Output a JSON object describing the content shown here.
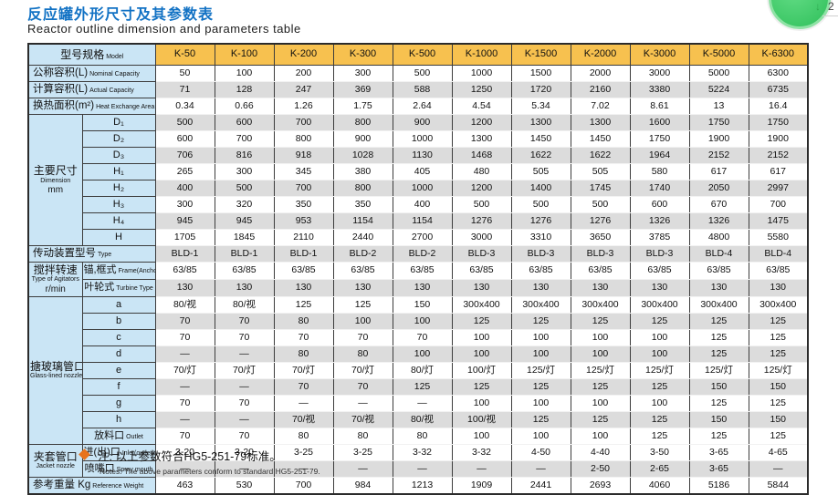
{
  "page": {
    "title_cn": "反应罐外形尺寸及其参数表",
    "title_en": "Reactor outline dimension and parameters table",
    "note_cn": "注: 以上参数符合HG5-251-79标准。",
    "note_en": "Notes: The above parameters conform to standard HG5-251-79."
  },
  "overlay": {
    "arrow": "↓",
    "badge_count": "2"
  },
  "colors": {
    "title_blue": "#1272C4",
    "header_orange": "#F7C14F",
    "label_blue": "#CAE5F5",
    "stripe_gray": "#DCDCDC",
    "note_diamond_orange": "#E8731C",
    "badge_green": "#2fbf5a"
  },
  "table": {
    "header": {
      "label_cn": "型号规格",
      "label_en": "Model",
      "models": [
        "K-50",
        "K-100",
        "K-200",
        "K-300",
        "K-500",
        "K-1000",
        "K-1500",
        "K-2000",
        "K-3000",
        "K-5000",
        "K-6300"
      ]
    },
    "rows": [
      {
        "label_cn": "公称容积(L)",
        "label_en": "Nominal Capacity",
        "shade": false,
        "values": [
          "50",
          "100",
          "200",
          "300",
          "500",
          "1000",
          "1500",
          "2000",
          "3000",
          "5000",
          "6300"
        ]
      },
      {
        "label_cn": "计算容积(L)",
        "label_en": "Actual Capacity",
        "shade": true,
        "values": [
          "71",
          "128",
          "247",
          "369",
          "588",
          "1250",
          "1720",
          "2160",
          "3380",
          "5224",
          "6735"
        ]
      },
      {
        "label_cn": "换热面积(m²)",
        "label_en": "Heat Exchange Area",
        "shade": false,
        "values": [
          "0.34",
          "0.66",
          "1.26",
          "1.75",
          "2.64",
          "4.54",
          "5.34",
          "7.02",
          "8.61",
          "13",
          "16.4"
        ]
      },
      {
        "group": {
          "cn": "主要尺寸",
          "en": "Dimension",
          "unit": "mm",
          "span": 8
        },
        "sub_cn": "D₁",
        "shade": true,
        "values": [
          "500",
          "600",
          "700",
          "800",
          "900",
          "1200",
          "1300",
          "1300",
          "1600",
          "1750",
          "1750"
        ]
      },
      {
        "sub_cn": "D₂",
        "shade": false,
        "values": [
          "600",
          "700",
          "800",
          "900",
          "1000",
          "1300",
          "1450",
          "1450",
          "1750",
          "1900",
          "1900"
        ]
      },
      {
        "sub_cn": "D₃",
        "shade": true,
        "values": [
          "706",
          "816",
          "918",
          "1028",
          "1130",
          "1468",
          "1622",
          "1622",
          "1964",
          "2152",
          "2152"
        ]
      },
      {
        "sub_cn": "H₁",
        "shade": false,
        "values": [
          "265",
          "300",
          "345",
          "380",
          "405",
          "480",
          "505",
          "505",
          "580",
          "617",
          "617"
        ]
      },
      {
        "sub_cn": "H₂",
        "shade": true,
        "values": [
          "400",
          "500",
          "700",
          "800",
          "1000",
          "1200",
          "1400",
          "1745",
          "1740",
          "2050",
          "2997"
        ]
      },
      {
        "sub_cn": "H₃",
        "shade": false,
        "values": [
          "300",
          "320",
          "350",
          "350",
          "400",
          "500",
          "500",
          "500",
          "600",
          "670",
          "700"
        ]
      },
      {
        "sub_cn": "H₄",
        "shade": true,
        "values": [
          "945",
          "945",
          "953",
          "1154",
          "1154",
          "1276",
          "1276",
          "1276",
          "1326",
          "1326",
          "1475"
        ]
      },
      {
        "sub_cn": "H",
        "shade": false,
        "values": [
          "1705",
          "1845",
          "2110",
          "2440",
          "2700",
          "3000",
          "3310",
          "3650",
          "3785",
          "4800",
          "5580"
        ]
      },
      {
        "label_cn": "传动装置型号",
        "label_en": "Type",
        "shade": true,
        "values": [
          "BLD-1",
          "BLD-1",
          "BLD-1",
          "BLD-2",
          "BLD-2",
          "BLD-3",
          "BLD-3",
          "BLD-3",
          "BLD-3",
          "BLD-4",
          "BLD-4"
        ]
      },
      {
        "group": {
          "cn": "搅拌转速",
          "en": "Type of Agitators",
          "unit": "r/min",
          "span": 2
        },
        "sub_cn": "锚,框式",
        "sub_en": "Frame(Anchor)Type",
        "shade": false,
        "values": [
          "63/85",
          "63/85",
          "63/85",
          "63/85",
          "63/85",
          "63/85",
          "63/85",
          "63/85",
          "63/85",
          "63/85",
          "63/85"
        ]
      },
      {
        "sub_cn": "叶轮式",
        "sub_en": "Turbine Type",
        "shade": true,
        "values": [
          "130",
          "130",
          "130",
          "130",
          "130",
          "130",
          "130",
          "130",
          "130",
          "130",
          "130"
        ]
      },
      {
        "group": {
          "cn": "搪玻璃管口",
          "en": "Glass-lined nozzle",
          "span": 9
        },
        "sub_cn": "a",
        "shade": false,
        "values": [
          "80/视",
          "80/视",
          "125",
          "125",
          "150",
          "300x400",
          "300x400",
          "300x400",
          "300x400",
          "300x400",
          "300x400"
        ]
      },
      {
        "sub_cn": "b",
        "shade": true,
        "values": [
          "70",
          "70",
          "80",
          "100",
          "100",
          "125",
          "125",
          "125",
          "125",
          "125",
          "125"
        ]
      },
      {
        "sub_cn": "c",
        "shade": false,
        "values": [
          "70",
          "70",
          "70",
          "70",
          "70",
          "100",
          "100",
          "100",
          "100",
          "125",
          "125"
        ]
      },
      {
        "sub_cn": "d",
        "shade": true,
        "values": [
          "—",
          "—",
          "80",
          "80",
          "100",
          "100",
          "100",
          "100",
          "100",
          "125",
          "125"
        ]
      },
      {
        "sub_cn": "e",
        "shade": false,
        "values": [
          "70/灯",
          "70/灯",
          "70/灯",
          "70/灯",
          "80/灯",
          "100/灯",
          "125/灯",
          "125/灯",
          "125/灯",
          "125/灯",
          "125/灯"
        ]
      },
      {
        "sub_cn": "f",
        "shade": true,
        "values": [
          "—",
          "—",
          "70",
          "70",
          "125",
          "125",
          "125",
          "125",
          "125",
          "150",
          "150"
        ]
      },
      {
        "sub_cn": "g",
        "shade": false,
        "values": [
          "70",
          "70",
          "—",
          "—",
          "—",
          "100",
          "100",
          "100",
          "100",
          "125",
          "125"
        ]
      },
      {
        "sub_cn": "h",
        "shade": true,
        "values": [
          "—",
          "—",
          "70/视",
          "70/视",
          "80/视",
          "100/视",
          "125",
          "125",
          "125",
          "150",
          "150"
        ]
      },
      {
        "sub_cn": "放料口",
        "sub_en": "Outlet",
        "shade": false,
        "values": [
          "70",
          "70",
          "80",
          "80",
          "80",
          "100",
          "100",
          "100",
          "125",
          "125",
          "125"
        ]
      },
      {
        "group": {
          "cn": "夹套管口",
          "en": "Jacket nozzle",
          "span": 2
        },
        "sub_cn": "进(出)口",
        "sub_en": "Inlet(outlet)",
        "shade": false,
        "values": [
          "3-20",
          "3-20",
          "3-25",
          "3-25",
          "3-32",
          "3-32",
          "4-50",
          "4-40",
          "3-50",
          "3-65",
          "4-65"
        ]
      },
      {
        "sub_cn": "喷嘴口",
        "sub_en": "Spray mouth",
        "shade": true,
        "values": [
          "—",
          "—",
          "—",
          "—",
          "—",
          "—",
          "—",
          "2-50",
          "2-65",
          "3-65",
          "—"
        ]
      },
      {
        "label_cn": "参考重量 Kg",
        "label_en": "Reference Weight",
        "shade": false,
        "values": [
          "463",
          "530",
          "700",
          "984",
          "1213",
          "1909",
          "2441",
          "2693",
          "4060",
          "5186",
          "5844"
        ]
      }
    ]
  }
}
